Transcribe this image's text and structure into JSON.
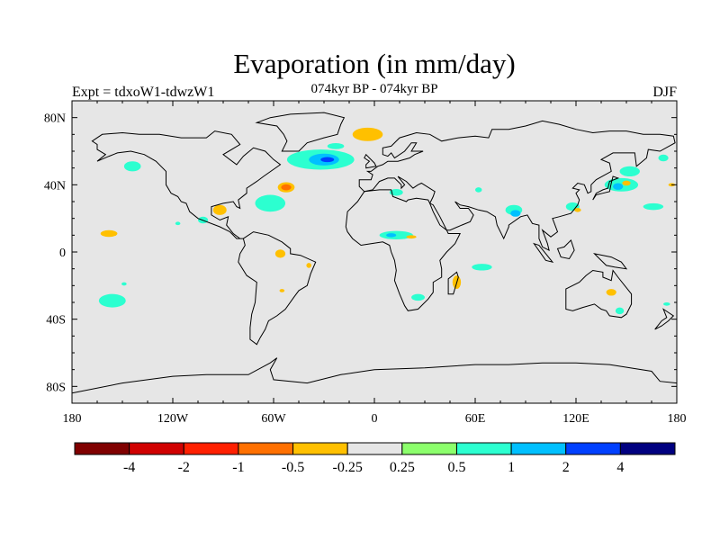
{
  "chart_data": {
    "type": "heatmap",
    "title": "Evaporation (in mm/day)",
    "left_label": "Expt = tdxoW1-tdwzW1",
    "center_label": "074kyr BP - 074kyr BP",
    "right_label": "DJF",
    "projection": "cylindrical equidistant",
    "xlim": [
      -180,
      180
    ],
    "ylim": [
      -90,
      90
    ],
    "x_ticks": [
      {
        "value": -180,
        "label": "180"
      },
      {
        "value": -120,
        "label": "120W"
      },
      {
        "value": -60,
        "label": "60W"
      },
      {
        "value": 0,
        "label": "0"
      },
      {
        "value": 60,
        "label": "60E"
      },
      {
        "value": 120,
        "label": "120E"
      },
      {
        "value": 180,
        "label": "180"
      }
    ],
    "y_ticks": [
      {
        "value": 80,
        "label": "80N"
      },
      {
        "value": 40,
        "label": "40N"
      },
      {
        "value": 0,
        "label": "0"
      },
      {
        "value": -40,
        "label": "40S"
      },
      {
        "value": -80,
        "label": "80S"
      }
    ],
    "background_color": "#e6e6e6",
    "colorbar": {
      "colors": [
        "#800000",
        "#d00000",
        "#ff2000",
        "#ff7000",
        "#ffc000",
        "#e6e6e6",
        "#8cff6c",
        "#2cffd0",
        "#00c0ff",
        "#0040ff",
        "#000080"
      ],
      "labels": [
        "-4",
        "-2",
        "-1",
        "-0.5",
        "-0.25",
        "0.25",
        "0.5",
        "1",
        "2",
        "4"
      ]
    },
    "anomalies": [
      {
        "lon": -32,
        "lat": 55,
        "rx": 20,
        "ry": 6,
        "value": 0.5
      },
      {
        "lon": -30,
        "lat": 55,
        "rx": 9,
        "ry": 3.5,
        "value": 1
      },
      {
        "lon": -28,
        "lat": 55,
        "rx": 4,
        "ry": 1.5,
        "value": 2
      },
      {
        "lon": -4,
        "lat": 70,
        "rx": 9,
        "ry": 4,
        "value": -0.5
      },
      {
        "lon": -23,
        "lat": 63,
        "rx": 5,
        "ry": 1.8,
        "value": 0.5
      },
      {
        "lon": -52.5,
        "lat": 38.5,
        "rx": 5,
        "ry": 3,
        "value": -0.5
      },
      {
        "lon": -52.5,
        "lat": 38.5,
        "rx": 3,
        "ry": 1.8,
        "value": -1
      },
      {
        "lon": -62,
        "lat": 29,
        "rx": 9,
        "ry": 5,
        "value": 0.5
      },
      {
        "lon": -92,
        "lat": 25,
        "rx": 4,
        "ry": 3,
        "value": -0.5
      },
      {
        "lon": -158,
        "lat": 11,
        "rx": 5,
        "ry": 2,
        "value": -0.5
      },
      {
        "lon": -56,
        "lat": -1,
        "rx": 3,
        "ry": 2.5,
        "value": -0.5
      },
      {
        "lon": -156,
        "lat": -29,
        "rx": 8,
        "ry": 4,
        "value": 0.5
      },
      {
        "lon": -144,
        "lat": 51,
        "rx": 5,
        "ry": 3,
        "value": 0.5
      },
      {
        "lon": -149,
        "lat": -19,
        "rx": 1.5,
        "ry": 1,
        "value": 0.5
      },
      {
        "lon": -117,
        "lat": 17,
        "rx": 1.5,
        "ry": 1,
        "value": 0.5
      },
      {
        "lon": -102,
        "lat": 19,
        "rx": 3,
        "ry": 2,
        "value": 0.5
      },
      {
        "lon": -39,
        "lat": -8,
        "rx": 1.5,
        "ry": 1.5,
        "value": -0.5
      },
      {
        "lon": -55,
        "lat": -23,
        "rx": 1.5,
        "ry": 1,
        "value": -0.5
      },
      {
        "lon": 13,
        "lat": 10,
        "rx": 10,
        "ry": 2.5,
        "value": 0.5
      },
      {
        "lon": 10,
        "lat": 10,
        "rx": 3,
        "ry": 1.2,
        "value": 1
      },
      {
        "lon": 22,
        "lat": 9,
        "rx": 3,
        "ry": 1,
        "value": -0.5
      },
      {
        "lon": 13,
        "lat": 35.5,
        "rx": 4,
        "ry": 2,
        "value": 0.5
      },
      {
        "lon": 64,
        "lat": -9,
        "rx": 6,
        "ry": 2,
        "value": 0.5
      },
      {
        "lon": 26,
        "lat": -27,
        "rx": 4,
        "ry": 2,
        "value": 0.5
      },
      {
        "lon": 49,
        "lat": -18,
        "rx": 2.5,
        "ry": 4,
        "value": -0.5
      },
      {
        "lon": 83,
        "lat": 25,
        "rx": 5,
        "ry": 3,
        "value": 0.5
      },
      {
        "lon": 84,
        "lat": 23,
        "rx": 3,
        "ry": 2,
        "value": 1
      },
      {
        "lon": 62,
        "lat": 37,
        "rx": 2,
        "ry": 1.5,
        "value": 0.5
      },
      {
        "lon": 118,
        "lat": 27,
        "rx": 4,
        "ry": 2.5,
        "value": 0.5
      },
      {
        "lon": 121,
        "lat": 25,
        "rx": 2,
        "ry": 1.2,
        "value": -0.5
      },
      {
        "lon": 147,
        "lat": 40,
        "rx": 10,
        "ry": 4,
        "value": 0.5
      },
      {
        "lon": 145,
        "lat": 39,
        "rx": 3,
        "ry": 2,
        "value": 1
      },
      {
        "lon": 150,
        "lat": 41,
        "rx": 2.5,
        "ry": 1.5,
        "value": -0.5
      },
      {
        "lon": 152,
        "lat": 48,
        "rx": 6,
        "ry": 3,
        "value": 0.5
      },
      {
        "lon": 166,
        "lat": 27,
        "rx": 6,
        "ry": 2,
        "value": 0.5
      },
      {
        "lon": 172,
        "lat": 56,
        "rx": 3,
        "ry": 2,
        "value": 0.5
      },
      {
        "lon": 177,
        "lat": 40,
        "rx": 2,
        "ry": 1,
        "value": -0.5
      },
      {
        "lon": 141,
        "lat": -24,
        "rx": 3,
        "ry": 2,
        "value": -0.5
      },
      {
        "lon": 146,
        "lat": -35,
        "rx": 2.5,
        "ry": 2,
        "value": 0.5
      },
      {
        "lon": 174,
        "lat": -31,
        "rx": 2,
        "ry": 1,
        "value": 0.5
      }
    ]
  }
}
